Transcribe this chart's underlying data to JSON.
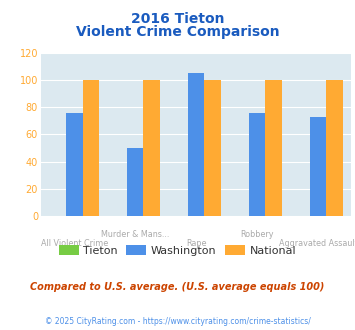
{
  "title_line1": "2016 Tieton",
  "title_line2": "Violent Crime Comparison",
  "categories": [
    "All Violent Crime",
    "Murder & Mans...",
    "Rape",
    "Robbery",
    "Aggravated Assault"
  ],
  "top_labels": [
    "",
    "Murder & Mans...",
    "",
    "Robbery",
    ""
  ],
  "bottom_labels": [
    "All Violent Crime",
    "",
    "Rape",
    "",
    "Aggravated Assault"
  ],
  "series": {
    "Tieton": [
      0,
      0,
      0,
      0,
      0
    ],
    "Washington": [
      76,
      50,
      105,
      76,
      73
    ],
    "National": [
      100,
      100,
      100,
      100,
      100
    ]
  },
  "colors": {
    "Tieton": "#77cc44",
    "Washington": "#4d90e8",
    "National": "#ffaa33"
  },
  "ylim": [
    0,
    120
  ],
  "yticks": [
    0,
    20,
    40,
    60,
    80,
    100,
    120
  ],
  "background_color": "#dce9f0",
  "grid_color": "#ffffff",
  "footnote1": "Compared to U.S. average. (U.S. average equals 100)",
  "footnote2": "© 2025 CityRating.com - https://www.cityrating.com/crime-statistics/",
  "title_color": "#1a5bbf",
  "label_color": "#aaaaaa",
  "ytick_color": "#ffaa33",
  "footnote1_color": "#cc4400",
  "footnote2_color": "#4d90e8"
}
